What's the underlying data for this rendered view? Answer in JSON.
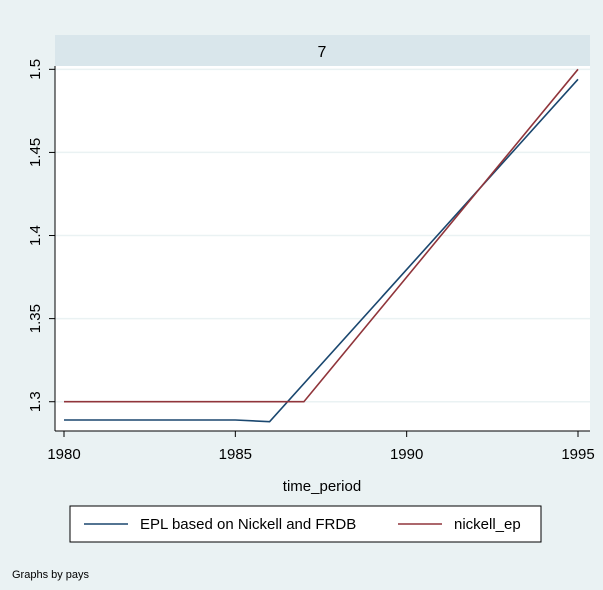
{
  "chart_data": {
    "type": "line",
    "panel_title": "7",
    "xlabel": "time_period",
    "ylabel": "",
    "xlim": [
      1980,
      1995
    ],
    "ylim": [
      1.289,
      1.502
    ],
    "xticks": [
      1980,
      1985,
      1990,
      1995
    ],
    "yticks": [
      1.3,
      1.35,
      1.4,
      1.45,
      1.5
    ],
    "ytick_labels": [
      "1.3",
      "1.35",
      "1.4",
      "1.45",
      "1.5"
    ],
    "grid": true,
    "legend_position": "bottom",
    "series": [
      {
        "name": "EPL based on Nickell and FRDB",
        "color": "#1a476f",
        "x": [
          1980,
          1981,
          1982,
          1983,
          1984,
          1985,
          1986,
          1995
        ],
        "y": [
          1.289,
          1.289,
          1.289,
          1.289,
          1.289,
          1.289,
          1.288,
          1.494
        ]
      },
      {
        "name": "nickell_ep",
        "color": "#90353b",
        "x": [
          1980,
          1981,
          1982,
          1983,
          1984,
          1985,
          1986,
          1987,
          1995
        ],
        "y": [
          1.3,
          1.3,
          1.3,
          1.3,
          1.3,
          1.3,
          1.3,
          1.3,
          1.5
        ]
      }
    ],
    "note": "Graphs by pays"
  },
  "colors": {
    "outer_background": "#eaf2f3",
    "plot_background": "#ffffff",
    "panel_strip": "#d9e6eb",
    "grid": "#eaf2f3"
  }
}
